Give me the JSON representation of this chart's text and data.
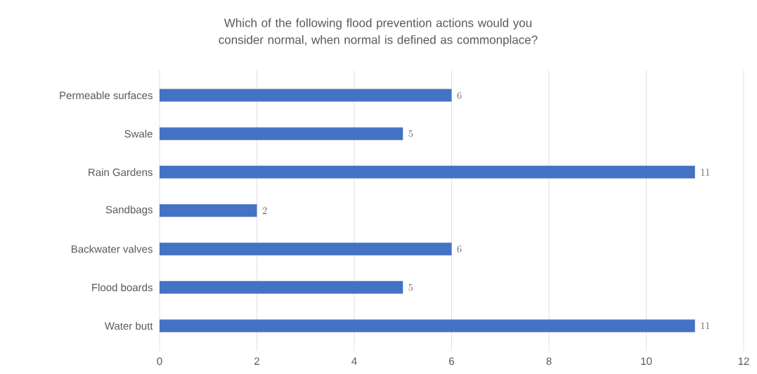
{
  "chart_data": {
    "type": "bar",
    "orientation": "horizontal",
    "title": "Which of the following flood prevention actions would you consider normal, when normal is defined as commonplace?",
    "categories": [
      "Permeable surfaces",
      "Swale",
      "Rain Gardens",
      "Sandbags",
      "Backwater valves",
      "Flood boards",
      "Water butt"
    ],
    "values": [
      6,
      5,
      11,
      2,
      6,
      5,
      11
    ],
    "color": "#4472c4",
    "xlim": [
      0,
      12
    ],
    "xticks": [
      0,
      2,
      4,
      6,
      8,
      10,
      12
    ],
    "grid": "x",
    "data_labels": true
  }
}
